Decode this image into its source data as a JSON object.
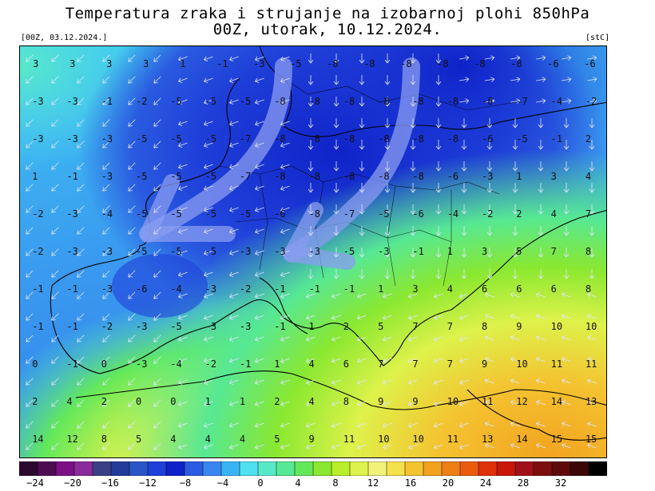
{
  "header": {
    "title_line1": "Temperatura zraka i strujanje na izobarnoj plohi 850hPa",
    "title_line2": "00Z, utorak, 10.12.2024.",
    "run_label": "[00Z, 03.12.2024.]",
    "unit_label": "[stC]"
  },
  "colorbar": {
    "colors": [
      "#2b0a2e",
      "#4d0c52",
      "#7a0f86",
      "#8a2a9b",
      "#3b3f86",
      "#233c9a",
      "#2a55c7",
      "#1f3fd9",
      "#0f22c8",
      "#2a5be0",
      "#3a86f0",
      "#38b4f4",
      "#4fe0f2",
      "#58e8c8",
      "#57e893",
      "#63e85a",
      "#8ae830",
      "#b8ee2a",
      "#ddf24a",
      "#f2f27a",
      "#f6e14a",
      "#f4c330",
      "#f2a21f",
      "#ee7f14",
      "#ea5c0c",
      "#e03008",
      "#c8160a",
      "#a0101a",
      "#7e0d0d",
      "#5e0a0a",
      "#3c0606",
      "#000000"
    ],
    "labels": [
      "−24",
      "−20",
      "−16",
      "−12",
      "−8",
      "−4",
      "0",
      "4",
      "8",
      "12",
      "16",
      "20",
      "24",
      "28",
      "32"
    ]
  },
  "map_data": {
    "description_values": [
      [
        "3",
        "3",
        "3",
        "3",
        "1",
        "-1",
        "-3",
        "-5",
        "-8",
        "-8",
        "-8",
        "-8",
        "-8",
        "-8",
        "-6",
        "-6"
      ],
      [
        "-3",
        "-3",
        "-1",
        "-2",
        "-5",
        "-5",
        "-5",
        "-8",
        "-8",
        "-8",
        "-8",
        "-8",
        "-8",
        "-8",
        "-7",
        "-4",
        "-2"
      ],
      [
        "-3",
        "-3",
        "-3",
        "-5",
        "-5",
        "-5",
        "-7",
        "-8",
        "-8",
        "-8",
        "-8",
        "-8",
        "-8",
        "-6",
        "-5",
        "-1",
        "2"
      ],
      [
        "1",
        "-1",
        "-3",
        "-5",
        "-5",
        "-5",
        "-7",
        "-8",
        "-8",
        "-8",
        "-8",
        "-8",
        "-6",
        "-3",
        "1",
        "3",
        "4"
      ],
      [
        "-2",
        "-3",
        "-4",
        "-5",
        "-5",
        "-5",
        "-5",
        "-6",
        "-8",
        "-7",
        "-5",
        "-6",
        "-4",
        "-2",
        "2",
        "4",
        "7"
      ],
      [
        "-2",
        "-3",
        "-3",
        "-5",
        "-5",
        "-5",
        "-3",
        "-3",
        "-3",
        "-5",
        "-3",
        "-1",
        "1",
        "3",
        "5",
        "7",
        "8"
      ],
      [
        "-1",
        "-1",
        "-3",
        "-6",
        "-4",
        "-3",
        "-2",
        "-1",
        "-1",
        "-1",
        "1",
        "3",
        "4",
        "6",
        "6",
        "6",
        "8"
      ],
      [
        "-1",
        "-1",
        "-2",
        "-3",
        "-5",
        "-3",
        "-3",
        "-1",
        "1",
        "2",
        "5",
        "7",
        "7",
        "8",
        "9",
        "10",
        "10"
      ],
      [
        "0",
        "-1",
        "0",
        "-3",
        "-4",
        "-2",
        "-1",
        "1",
        "4",
        "6",
        "7",
        "7",
        "7",
        "9",
        "10",
        "11",
        "11"
      ],
      [
        "2",
        "4",
        "2",
        "0",
        "0",
        "1",
        "1",
        "2",
        "4",
        "8",
        "9",
        "9",
        "10",
        "11",
        "12",
        "14",
        "13"
      ],
      [
        "14",
        "12",
        "8",
        "5",
        "4",
        "4",
        "4",
        "5",
        "9",
        "11",
        "10",
        "10",
        "11",
        "13",
        "14",
        "15",
        "15"
      ]
    ]
  }
}
